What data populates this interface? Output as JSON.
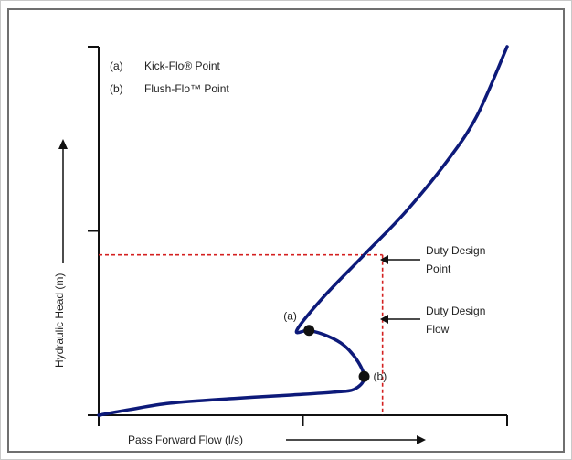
{
  "chart_data": {
    "type": "line",
    "title": "",
    "xlabel": "Pass Forward Flow (l/s)",
    "ylabel": "Hydraulic Head (m)",
    "xlim": [
      0,
      2
    ],
    "ylim": [
      0,
      2
    ],
    "x_ticks": [
      0,
      1,
      2
    ],
    "y_ticks": [
      0,
      1,
      2
    ],
    "grid": false,
    "legend": [
      {
        "marker": "(a)",
        "label": "Kick-Flo® Point"
      },
      {
        "marker": "(b)",
        "label": "Flush-Flo™ Point"
      }
    ],
    "series": [
      {
        "color": "#0d1a7a",
        "points": [
          [
            0.0,
            0.0
          ],
          [
            0.15,
            0.03
          ],
          [
            0.35,
            0.065
          ],
          [
            0.65,
            0.09
          ],
          [
            0.95,
            0.11
          ],
          [
            1.15,
            0.125
          ],
          [
            1.25,
            0.14
          ],
          [
            1.3,
            0.2
          ],
          [
            1.27,
            0.29
          ],
          [
            1.2,
            0.38
          ],
          [
            1.12,
            0.43
          ],
          [
            1.03,
            0.46
          ],
          [
            0.97,
            0.46
          ],
          [
            1.1,
            0.64
          ],
          [
            1.3,
            0.87
          ],
          [
            1.5,
            1.1
          ],
          [
            1.7,
            1.37
          ],
          [
            1.85,
            1.62
          ],
          [
            2.0,
            2.0
          ]
        ]
      }
    ],
    "markers": [
      {
        "label": "(a)",
        "x": 1.03,
        "y": 0.46
      },
      {
        "label": "(b)",
        "x": 1.3,
        "y": 0.21
      }
    ],
    "duty_point": {
      "x": 1.39,
      "y": 0.87,
      "color": "#d42020"
    },
    "annotations": [
      {
        "id": "point",
        "lines": [
          "Duty Design",
          "Point"
        ]
      },
      {
        "id": "flow",
        "lines": [
          "Duty Design",
          "Flow"
        ]
      }
    ]
  }
}
